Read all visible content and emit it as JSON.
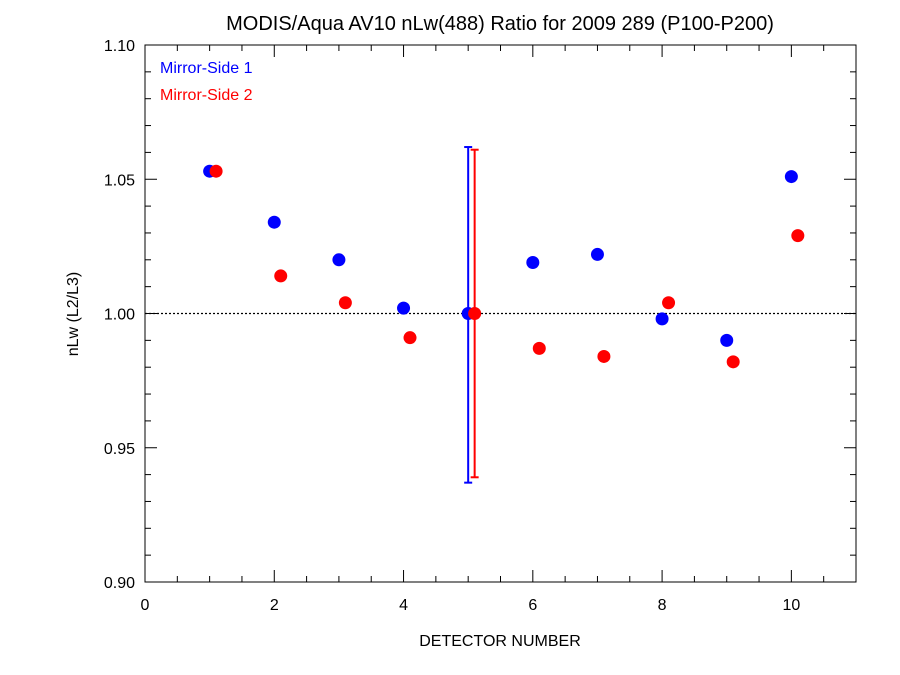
{
  "chart_data": {
    "type": "scatter",
    "title": "MODIS/Aqua AV10 nLw(488) Ratio for 2009 289 (P100-P200)",
    "xlabel": "DETECTOR NUMBER",
    "ylabel": "nLw (L2/L3)",
    "xlim": [
      0,
      11
    ],
    "ylim": [
      0.9,
      1.1
    ],
    "x_ticks": [
      0,
      2,
      4,
      6,
      8,
      10
    ],
    "x_tick_labels": [
      "0",
      "2",
      "4",
      "6",
      "8",
      "10"
    ],
    "y_ticks": [
      0.9,
      0.95,
      1.0,
      1.05,
      1.1
    ],
    "y_tick_labels": [
      "0.90",
      "0.95",
      "1.00",
      "1.05",
      "1.10"
    ],
    "reference_line": 1.0,
    "legend_position": "top-left",
    "series": [
      {
        "name": "Mirror-Side 1",
        "color": "#0000ff",
        "x": [
          1,
          2,
          3,
          4,
          5,
          6,
          7,
          8,
          9,
          10
        ],
        "y": [
          1.053,
          1.034,
          1.02,
          1.002,
          1.0,
          1.019,
          1.022,
          0.998,
          0.99,
          1.051
        ],
        "error_bar": {
          "x": 5,
          "low": 0.937,
          "high": 1.062
        }
      },
      {
        "name": "Mirror-Side 2",
        "color": "#ff0000",
        "x": [
          1.1,
          2.1,
          3.1,
          4.1,
          5.1,
          6.1,
          7.1,
          8.1,
          9.1,
          10.1
        ],
        "y": [
          1.053,
          1.014,
          1.004,
          0.991,
          1.0,
          0.987,
          0.984,
          1.004,
          0.982,
          1.029
        ],
        "error_bar": {
          "x": 5.1,
          "low": 0.939,
          "high": 1.061
        }
      }
    ]
  }
}
